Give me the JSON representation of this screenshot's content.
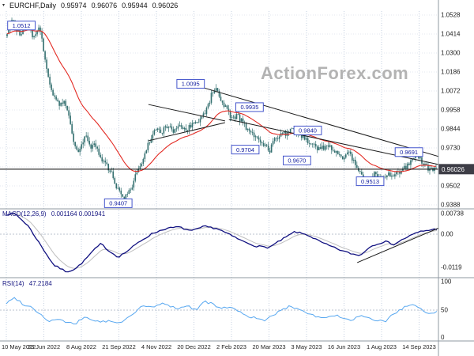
{
  "header": {
    "symbol": "EURCHF,Daily",
    "open": "0.95974",
    "high": "0.96076",
    "low": "0.95944",
    "close": "0.96026"
  },
  "watermark": "ActionForex.com",
  "colors": {
    "candle": "#336f6f",
    "ma": "#e32b24",
    "trend": "#1a1a1a",
    "macd_line": "#101080",
    "macd_signal": "#bfbfbf",
    "rsi": "#57a7f0",
    "grid_v": "#c6d0e0",
    "grid_h": "#e3e7ef",
    "grid_mid": "#b9c0cc",
    "label_border": "#4455cc",
    "label_text": "#1520a0",
    "price_box": "#3d3d46",
    "border": "#8f98a2",
    "axis_text": "#222222"
  },
  "price_axis": {
    "labels": [
      "1.0528",
      "1.0414",
      "1.0300",
      "1.0186",
      "1.0072",
      "0.9958",
      "0.9844",
      "0.9730",
      "0.9616",
      "0.9502",
      "0.9388"
    ],
    "current": "0.96026"
  },
  "macd": {
    "label": "MACD(12,26,9)",
    "values_text": "0.001164 0.001941",
    "axis": [
      {
        "v": 0.00738,
        "label": "0.00738"
      },
      {
        "v": 0,
        "label": "0.00"
      },
      {
        "v": -0.0119,
        "label": "-0.0119"
      }
    ]
  },
  "rsi": {
    "label": "RSI(14)",
    "value_text": "47.2184",
    "axis": [
      {
        "v": 100,
        "label": "100"
      },
      {
        "v": 50,
        "label": "50"
      },
      {
        "v": 0,
        "label": "0"
      }
    ]
  },
  "dates": [
    "10 May 2022",
    "23 Jun 2022",
    "8 Aug 2022",
    "21 Sep 2022",
    "4 Nov 2022",
    "20 Dec 2022",
    "2 Feb 2023",
    "20 Mar 2023",
    "3 May 2023",
    "16 Jun 2023",
    "1 Aug 2023",
    "14 Sep 2023"
  ],
  "chart_data": [
    {
      "type": "candlestick",
      "title": "EURCHF Daily",
      "x_range": [
        "10 May 2022",
        "22 Sep 2023"
      ],
      "ylim": [
        0.9388,
        1.0528
      ],
      "y_axis_ticks": [
        1.0528,
        1.0414,
        1.03,
        1.0186,
        1.0072,
        0.9958,
        0.9844,
        0.973,
        0.9616,
        0.9502,
        0.9388
      ],
      "ohlc_current": {
        "open": 0.95974,
        "high": 0.96076,
        "low": 0.95944,
        "close": 0.96026
      },
      "overlays": [
        "red moving average line",
        "two descending resistance trend lines",
        "small triangle pattern Nov-Dec 2022",
        "rising MACD support line"
      ],
      "close_waypoints": [
        [
          0.0,
          1.04
        ],
        [
          0.012,
          1.0495
        ],
        [
          0.02,
          1.0455
        ],
        [
          0.03,
          1.0405
        ],
        [
          0.045,
          1.0475
        ],
        [
          0.06,
          1.04
        ],
        [
          0.075,
          1.0455
        ],
        [
          0.085,
          1.032
        ],
        [
          0.095,
          1.018
        ],
        [
          0.105,
          1.006
        ],
        [
          0.115,
          1.002
        ],
        [
          0.125,
          0.999
        ],
        [
          0.135,
          1.0
        ],
        [
          0.145,
          0.992
        ],
        [
          0.155,
          0.978
        ],
        [
          0.165,
          0.97
        ],
        [
          0.175,
          0.976
        ],
        [
          0.185,
          0.98
        ],
        [
          0.195,
          0.973
        ],
        [
          0.205,
          0.976
        ],
        [
          0.215,
          0.97
        ],
        [
          0.225,
          0.964
        ],
        [
          0.235,
          0.961
        ],
        [
          0.245,
          0.957
        ],
        [
          0.255,
          0.95
        ],
        [
          0.265,
          0.944
        ],
        [
          0.272,
          0.941
        ],
        [
          0.28,
          0.946
        ],
        [
          0.29,
          0.948
        ],
        [
          0.3,
          0.957
        ],
        [
          0.315,
          0.963
        ],
        [
          0.33,
          0.976
        ],
        [
          0.345,
          0.985
        ],
        [
          0.36,
          0.982
        ],
        [
          0.375,
          0.987
        ],
        [
          0.39,
          0.983
        ],
        [
          0.405,
          0.986
        ],
        [
          0.42,
          0.984
        ],
        [
          0.435,
          0.988
        ],
        [
          0.45,
          0.99
        ],
        [
          0.465,
          0.996
        ],
        [
          0.478,
          1.006
        ],
        [
          0.488,
          1.008
        ],
        [
          0.5,
          1.002
        ],
        [
          0.512,
          0.996
        ],
        [
          0.525,
          0.99
        ],
        [
          0.535,
          0.993
        ],
        [
          0.55,
          0.988
        ],
        [
          0.565,
          0.983
        ],
        [
          0.58,
          0.979
        ],
        [
          0.6,
          0.975
        ],
        [
          0.613,
          0.9715
        ],
        [
          0.625,
          0.979
        ],
        [
          0.64,
          0.981
        ],
        [
          0.655,
          0.9825
        ],
        [
          0.67,
          0.9835
        ],
        [
          0.685,
          0.98
        ],
        [
          0.7,
          0.9775
        ],
        [
          0.715,
          0.975
        ],
        [
          0.73,
          0.972
        ],
        [
          0.745,
          0.975
        ],
        [
          0.76,
          0.972
        ],
        [
          0.775,
          0.969
        ],
        [
          0.785,
          0.9672
        ],
        [
          0.795,
          0.97
        ],
        [
          0.81,
          0.964
        ],
        [
          0.825,
          0.956
        ],
        [
          0.835,
          0.952
        ],
        [
          0.845,
          0.9545
        ],
        [
          0.855,
          0.9575
        ],
        [
          0.865,
          0.9545
        ],
        [
          0.875,
          0.955
        ],
        [
          0.885,
          0.958
        ],
        [
          0.895,
          0.956
        ],
        [
          0.905,
          0.957
        ],
        [
          0.915,
          0.959
        ],
        [
          0.925,
          0.961
        ],
        [
          0.935,
          0.963
        ],
        [
          0.945,
          0.966
        ],
        [
          0.955,
          0.9685
        ],
        [
          0.965,
          0.9655
        ],
        [
          0.975,
          0.9625
        ],
        [
          0.985,
          0.96
        ],
        [
          1.0,
          0.9603
        ]
      ],
      "swing_labels": [
        {
          "label": "1.0512",
          "t": 0.035,
          "y": 1.0465
        },
        {
          "label": "1.0095",
          "t": 0.428,
          "y": 1.0115
        },
        {
          "label": "0.9935",
          "t": 0.565,
          "y": 0.9975
        },
        {
          "label": "0.9840",
          "t": 0.7,
          "y": 0.9835
        },
        {
          "label": "0.9704",
          "t": 0.555,
          "y": 0.972
        },
        {
          "label": "0.9670",
          "t": 0.675,
          "y": 0.9655
        },
        {
          "label": "0.9691",
          "t": 0.935,
          "y": 0.9705
        },
        {
          "label": "0.9513",
          "t": 0.845,
          "y": 0.953
        },
        {
          "label": "0.9407",
          "t": 0.26,
          "y": 0.9398
        }
      ],
      "trend_lines": [
        [
          0.33,
          0.9991,
          0.508,
          0.9892
        ],
        [
          0.33,
          0.9773,
          0.508,
          0.9882
        ],
        [
          0.42,
          1.012,
          1.005,
          0.9678
        ],
        [
          0.517,
          0.9901,
          1.005,
          0.963
        ]
      ]
    },
    {
      "type": "line",
      "name": "MACD(12,26,9)",
      "current_values": [
        0.001164,
        0.001941
      ],
      "ylim": [
        -0.0145,
        0.0083
      ],
      "axis_labels": [
        0.00738,
        0,
        -0.0119
      ],
      "waypoints": [
        [
          0.0,
          0.0071
        ],
        [
          0.02,
          0.0074
        ],
        [
          0.05,
          0.0031
        ],
        [
          0.08,
          -0.004
        ],
        [
          0.11,
          -0.0111
        ],
        [
          0.14,
          -0.0135
        ],
        [
          0.16,
          -0.0125
        ],
        [
          0.18,
          -0.0097
        ],
        [
          0.2,
          -0.0062
        ],
        [
          0.22,
          -0.0034
        ],
        [
          0.24,
          -0.0062
        ],
        [
          0.26,
          -0.0082
        ],
        [
          0.28,
          -0.0062
        ],
        [
          0.31,
          -0.0026
        ],
        [
          0.34,
          0.0003
        ],
        [
          0.37,
          0.002
        ],
        [
          0.4,
          0.0026
        ],
        [
          0.43,
          0.0011
        ],
        [
          0.46,
          0.0028
        ],
        [
          0.49,
          0.002
        ],
        [
          0.52,
          -0.0003
        ],
        [
          0.55,
          -0.0026
        ],
        [
          0.58,
          -0.0043
        ],
        [
          0.61,
          -0.0048
        ],
        [
          0.64,
          -0.002
        ],
        [
          0.67,
          0.0009
        ],
        [
          0.7,
          -0.0003
        ],
        [
          0.73,
          -0.0028
        ],
        [
          0.76,
          -0.0048
        ],
        [
          0.79,
          -0.0065
        ],
        [
          0.82,
          -0.0077
        ],
        [
          0.85,
          -0.004
        ],
        [
          0.88,
          -0.0026
        ],
        [
          0.9,
          -0.0037
        ],
        [
          0.93,
          -0.0011
        ],
        [
          0.96,
          0.0009
        ],
        [
          1.0,
          0.0019
        ]
      ],
      "trend_line": [
        0.815,
        -0.0102,
        1.01,
        0.0026
      ]
    },
    {
      "type": "line",
      "name": "RSI(14)",
      "current_value": 47.2184,
      "ylim": [
        0,
        100
      ],
      "levels": [
        100,
        50,
        0
      ],
      "waypoints": [
        [
          0.0,
          62
        ],
        [
          0.02,
          72
        ],
        [
          0.04,
          60
        ],
        [
          0.06,
          55
        ],
        [
          0.08,
          42
        ],
        [
          0.1,
          30
        ],
        [
          0.12,
          35
        ],
        [
          0.14,
          28
        ],
        [
          0.16,
          25
        ],
        [
          0.18,
          38
        ],
        [
          0.2,
          33
        ],
        [
          0.22,
          29
        ],
        [
          0.24,
          31
        ],
        [
          0.26,
          26
        ],
        [
          0.28,
          35
        ],
        [
          0.3,
          48
        ],
        [
          0.32,
          58
        ],
        [
          0.34,
          54
        ],
        [
          0.36,
          62
        ],
        [
          0.38,
          57
        ],
        [
          0.4,
          53
        ],
        [
          0.42,
          58
        ],
        [
          0.44,
          50
        ],
        [
          0.46,
          66
        ],
        [
          0.48,
          60
        ],
        [
          0.5,
          52
        ],
        [
          0.52,
          57
        ],
        [
          0.54,
          47
        ],
        [
          0.56,
          40
        ],
        [
          0.58,
          36
        ],
        [
          0.6,
          30
        ],
        [
          0.62,
          42
        ],
        [
          0.64,
          50
        ],
        [
          0.66,
          57
        ],
        [
          0.68,
          52
        ],
        [
          0.7,
          45
        ],
        [
          0.72,
          39
        ],
        [
          0.74,
          35
        ],
        [
          0.76,
          42
        ],
        [
          0.78,
          36
        ],
        [
          0.8,
          31
        ],
        [
          0.82,
          40
        ],
        [
          0.84,
          35
        ],
        [
          0.86,
          32
        ],
        [
          0.88,
          30
        ],
        [
          0.9,
          44
        ],
        [
          0.92,
          53
        ],
        [
          0.94,
          60
        ],
        [
          0.96,
          52
        ],
        [
          0.98,
          45
        ],
        [
          1.0,
          47.2
        ]
      ]
    }
  ]
}
